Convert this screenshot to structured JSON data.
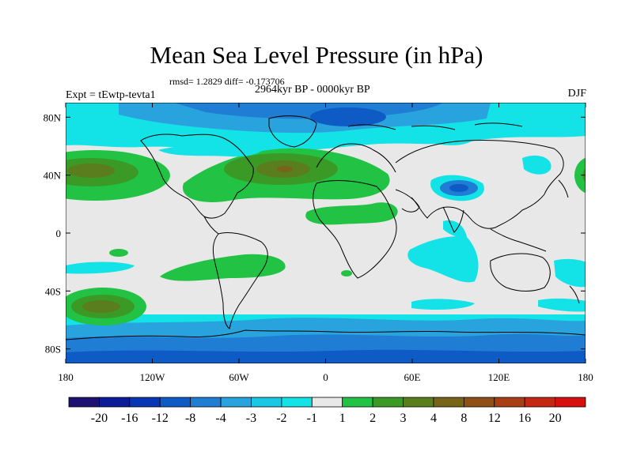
{
  "title": "Mean Sea Level Pressure (in hPa)",
  "stats": "rmsd= 1.2829 diff= -0.173706",
  "experiment": "Expt = tEwtp-tevta1",
  "period": "2964kyr BP - 0000kyr BP",
  "season": "DJF",
  "map": {
    "lon_ticks": [
      {
        "lon": -180,
        "label": "180"
      },
      {
        "lon": -120,
        "label": "120W"
      },
      {
        "lon": -60,
        "label": "60W"
      },
      {
        "lon": 0,
        "label": "0"
      },
      {
        "lon": 60,
        "label": "60E"
      },
      {
        "lon": 120,
        "label": "120E"
      },
      {
        "lon": 180,
        "label": "180"
      }
    ],
    "lat_ticks": [
      {
        "lat": 80,
        "label": "80N"
      },
      {
        "lat": 40,
        "label": "40N"
      },
      {
        "lat": 0,
        "label": "0"
      },
      {
        "lat": -40,
        "label": "40S"
      },
      {
        "lat": -80,
        "label": "80S"
      }
    ]
  },
  "colorbar": {
    "colors": [
      "#1d1272",
      "#0c1b98",
      "#0936b4",
      "#0f5bc5",
      "#1f7dd3",
      "#29a3dd",
      "#1ac8e3",
      "#13e3e6",
      "#e8e8e8",
      "#22c245",
      "#3a9a25",
      "#5a7e1d",
      "#786418",
      "#8f4f16",
      "#a93d14",
      "#c42812",
      "#d80f0f"
    ],
    "labels": [
      "-20",
      "-16",
      "-12",
      "-8",
      "-4",
      "-3",
      "-2",
      "-1",
      "1",
      "2",
      "3",
      "4",
      "8",
      "12",
      "16",
      "20"
    ]
  }
}
